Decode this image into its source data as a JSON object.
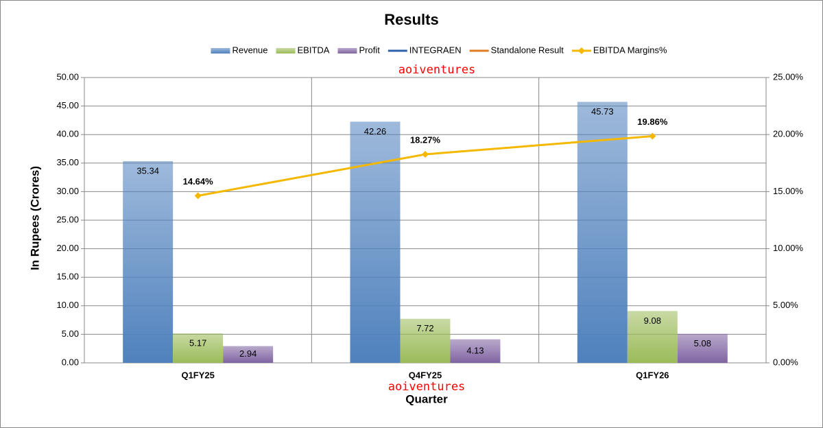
{
  "chart_data": {
    "type": "bar",
    "title": "Results",
    "watermarks": [
      "aoiventures",
      "aoiventures"
    ],
    "y_label": "In Rupees (Crores)",
    "x_label": "Quarter",
    "categories": [
      "Q1FY25",
      "Q4FY25",
      "Q1FY26"
    ],
    "series": [
      {
        "name": "Revenue",
        "color": "#4f81bd",
        "values": [
          35.34,
          42.26,
          45.73
        ]
      },
      {
        "name": "EBITDA",
        "color": "#9bbb59",
        "values": [
          5.17,
          7.72,
          9.08
        ]
      },
      {
        "name": "Profit",
        "color": "#8064a2",
        "values": [
          2.94,
          4.13,
          5.08
        ]
      },
      {
        "name": "INTEGRAEN",
        "type": "line",
        "color": "#2e5fa8",
        "values": [
          null,
          null,
          null
        ]
      },
      {
        "name": "Standalone Result",
        "type": "line",
        "color": "#e07b20",
        "values": [
          null,
          null,
          null
        ]
      },
      {
        "name": "EBITDA Margins%",
        "type": "line",
        "axis": "y2",
        "color": "#f5b800",
        "values": [
          14.64,
          18.27,
          19.86
        ],
        "value_labels": [
          "14.64%",
          "18.27%",
          "19.86%"
        ]
      }
    ],
    "ylim": [
      0,
      50
    ],
    "yticks": [
      {
        "value": 0,
        "label": "0.00"
      },
      {
        "value": 5,
        "label": "5.00"
      },
      {
        "value": 10,
        "label": "10.00"
      },
      {
        "value": 15,
        "label": "15.00"
      },
      {
        "value": 20,
        "label": "20.00"
      },
      {
        "value": 25,
        "label": "25.00"
      },
      {
        "value": 30,
        "label": "30.00"
      },
      {
        "value": 35,
        "label": "35.00"
      },
      {
        "value": 40,
        "label": "40.00"
      },
      {
        "value": 45,
        "label": "45.00"
      },
      {
        "value": 50,
        "label": "50.00"
      }
    ],
    "y2lim": [
      0,
      25
    ],
    "y2ticks": [
      {
        "value": 0,
        "label": "0.00%"
      },
      {
        "value": 5,
        "label": "5.00%"
      },
      {
        "value": 10,
        "label": "10.00%"
      },
      {
        "value": 15,
        "label": "15.00%"
      },
      {
        "value": 20,
        "label": "20.00%"
      },
      {
        "value": 25,
        "label": "25.00%"
      }
    ],
    "grid": true,
    "legend": "top"
  }
}
